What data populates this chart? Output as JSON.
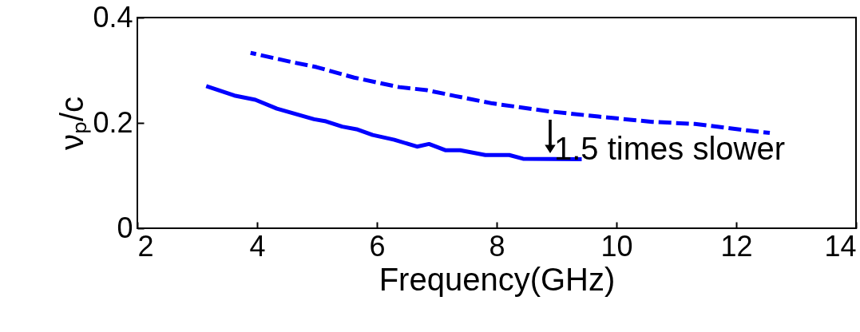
{
  "chart_data": {
    "type": "line",
    "xlabel": "Frequency(GHz)",
    "ylabel": "νₚ/c",
    "xlim": [
      2,
      14
    ],
    "xticks": [
      2,
      4,
      6,
      8,
      10,
      12,
      14
    ],
    "ylim": [
      0,
      0.4
    ],
    "yticks": [
      0,
      0.2,
      0.4
    ],
    "grid": false,
    "series": [
      {
        "color": "#0000ff",
        "line_style": "solid",
        "x": [
          3.15,
          3.62,
          3.97,
          4.33,
          4.95,
          5.15,
          5.42,
          5.66,
          5.93,
          6.29,
          6.67,
          6.87,
          7.15,
          7.39,
          7.81,
          8.21,
          8.44,
          9.42
        ],
        "values": [
          0.27,
          0.252,
          0.244,
          0.227,
          0.207,
          0.203,
          0.193,
          0.188,
          0.177,
          0.168,
          0.155,
          0.16,
          0.148,
          0.148,
          0.139,
          0.139,
          0.132,
          0.131
        ]
      },
      {
        "color": "#0000ff",
        "line_style": "dashed",
        "x": [
          3.89,
          4.56,
          4.99,
          5.62,
          6.37,
          6.84,
          7.31,
          7.93,
          8.87,
          9.7,
          10.6,
          11.31,
          12.17,
          12.56
        ],
        "values": [
          0.333,
          0.316,
          0.306,
          0.286,
          0.268,
          0.262,
          0.251,
          0.237,
          0.222,
          0.212,
          0.202,
          0.198,
          0.186,
          0.181
        ]
      }
    ],
    "annotations": [
      "1.5 times slower"
    ]
  }
}
